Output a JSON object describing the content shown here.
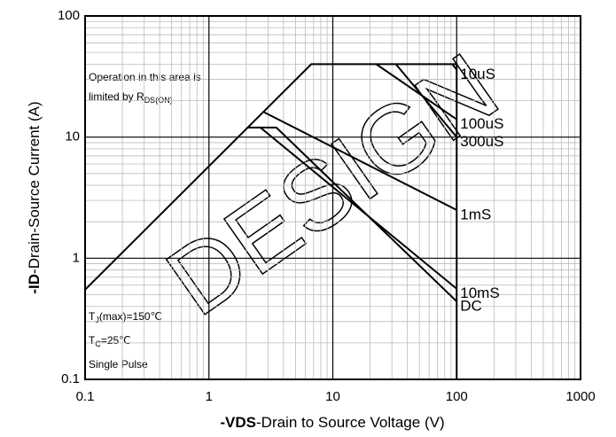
{
  "chart_data": {
    "type": "line",
    "xlabel_bold": "-VDS",
    "xlabel": "-Drain to Source Voltage (V)",
    "ylabel_bold": "-ID",
    "ylabel": "-Drain-Source Current (A)",
    "log_x": true,
    "log_y": true,
    "grid": true,
    "xlim": [
      0.1,
      1000
    ],
    "ylim": [
      0.1,
      100
    ],
    "xticks": [
      0.1,
      1,
      10,
      100,
      1000
    ],
    "yticks": [
      0.1,
      1,
      10,
      100
    ],
    "limit_line": {
      "x": [
        0.1,
        6.7,
        100,
        100
      ],
      "y": [
        0.55,
        40,
        40,
        0.1
      ]
    },
    "series": [
      {
        "name": "10uS",
        "color": "#000000",
        "x": [
          92,
          100
        ],
        "y": [
          40,
          36
        ]
      },
      {
        "name": "100uS",
        "color": "#000000",
        "x": [
          22.4,
          100
        ],
        "y": [
          40,
          14
        ]
      },
      {
        "name": "300uS",
        "color": "#000000",
        "x": [
          32.3,
          100
        ],
        "y": [
          40,
          10
        ]
      },
      {
        "name": "1mS",
        "color": "#000000",
        "x": [
          2.8,
          100
        ],
        "y": [
          16,
          2.5
        ]
      },
      {
        "name": "10mS",
        "color": "#000000",
        "x": [
          2.05,
          2.6,
          100
        ],
        "y": [
          12,
          12,
          0.56
        ]
      },
      {
        "name": "DC",
        "color": "#000000",
        "x": [
          2.6,
          3.5,
          100
        ],
        "y": [
          12,
          12,
          0.44
        ]
      }
    ],
    "annotations": {
      "area_line1": "Operation in this area is",
      "area_line2": "limited by R",
      "area_sub": "DS(ON)",
      "tj": "T",
      "tj_sub": "J",
      "tj_rest": "(max)=150℃",
      "tc": "T",
      "tc_sub": "C",
      "tc_rest": "=25℃",
      "pulse": "Single Pulse"
    },
    "watermark": "DESIGN"
  }
}
